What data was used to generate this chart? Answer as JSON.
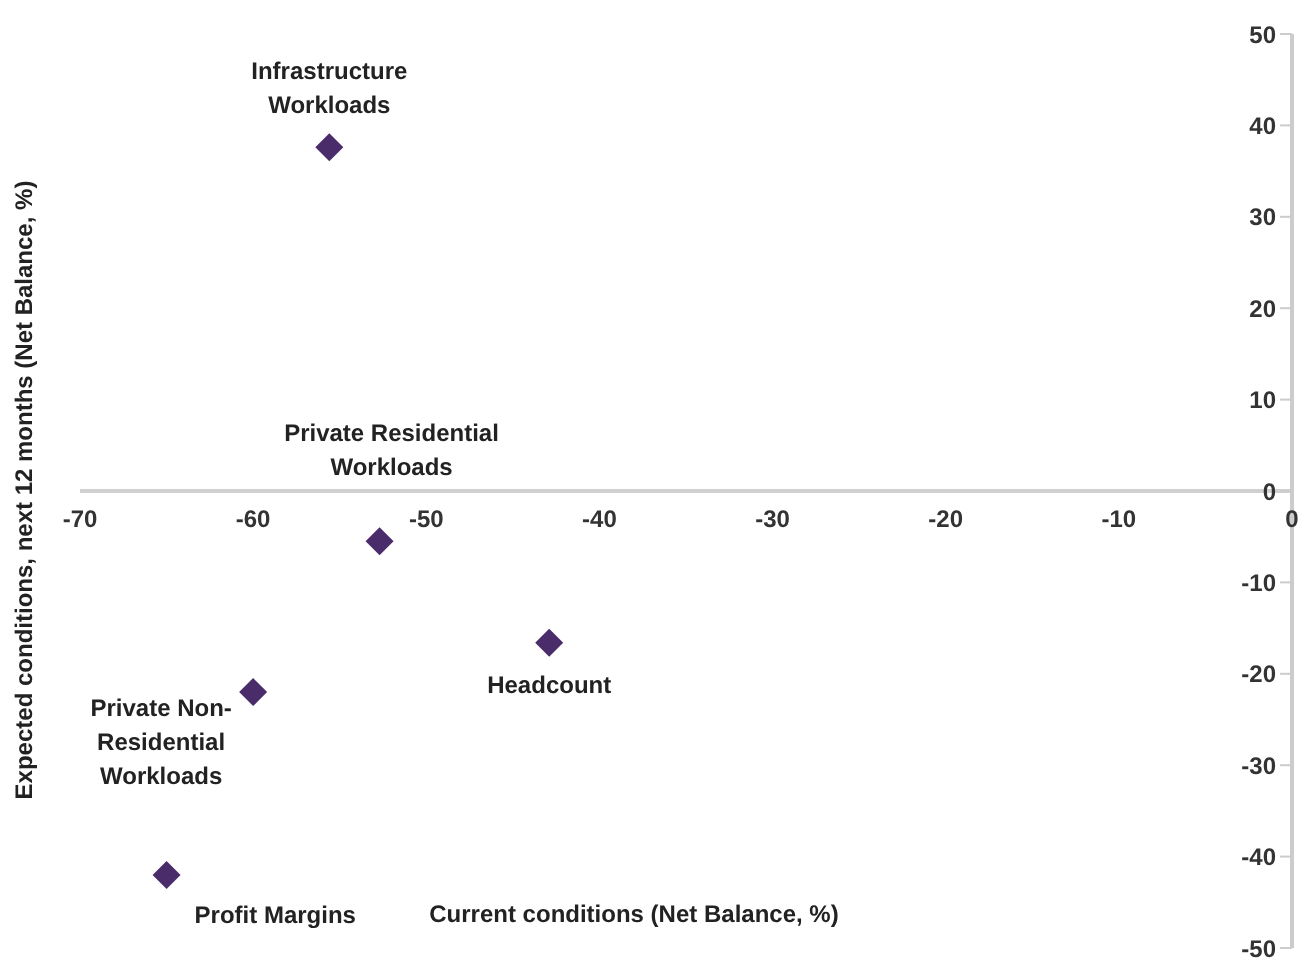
{
  "chart_data": {
    "type": "scatter",
    "xlabel": "Current conditions (Net Balance, %)",
    "ylabel": "Expected conditions, next 12 months (Net Balance, %)",
    "x": [
      -55.6,
      -52.7,
      -42.9,
      -60,
      -65
    ],
    "values": [
      37.6,
      -5.5,
      -16.6,
      -22,
      -42
    ],
    "color": "#4b2c6b",
    "marker": "diamond",
    "xlim": [
      -70,
      0
    ],
    "xticks": [
      -70,
      -60,
      -50,
      -40,
      -30,
      -20,
      -10,
      0
    ],
    "ylim": [
      -50,
      50
    ],
    "yticks": [
      -50,
      -40,
      -30,
      -20,
      -10,
      0,
      10,
      20,
      30,
      40,
      50
    ],
    "grid": false,
    "legend": false,
    "annotations": [
      {
        "text": "Infrastructure Workloads",
        "x": -55.6,
        "y": 37.6
      },
      {
        "text": "Private Residential Workloads",
        "x": -52.7,
        "y": -5.5
      },
      {
        "text": "Headcount",
        "x": -42.9,
        "y": -16.6
      },
      {
        "text": "Private Non-Residential Workloads",
        "x": -60,
        "y": -22
      },
      {
        "text": "Profit Margins",
        "x": -65,
        "y": -42
      }
    ]
  }
}
